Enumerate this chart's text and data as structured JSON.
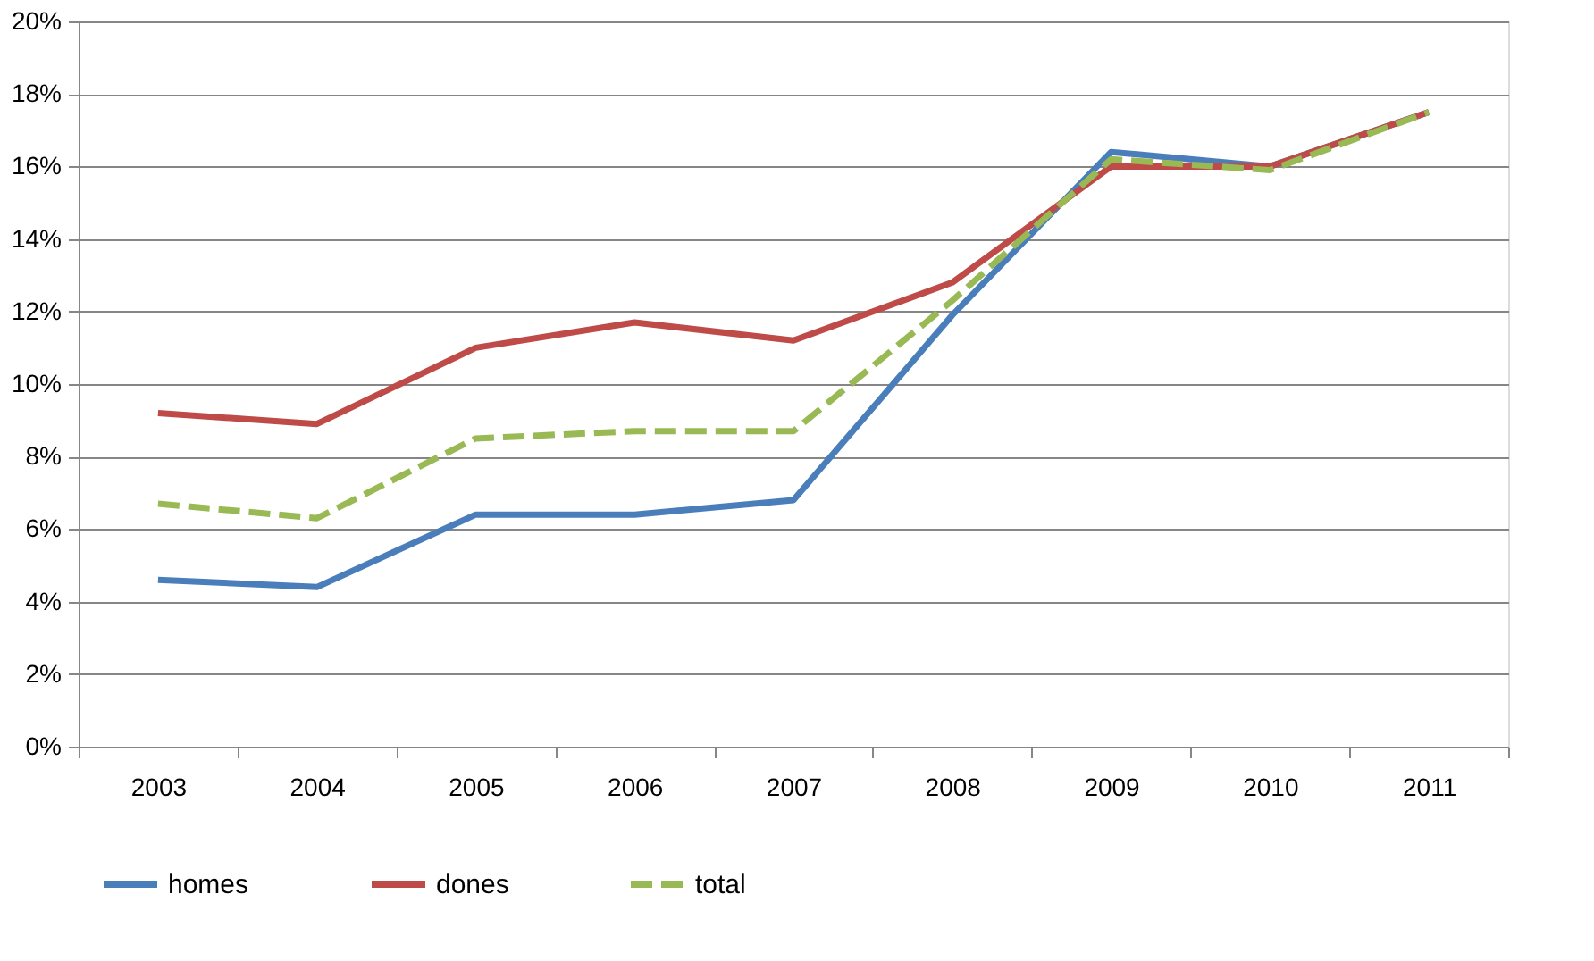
{
  "chart_data": {
    "type": "line",
    "categories": [
      "2003",
      "2004",
      "2005",
      "2006",
      "2007",
      "2008",
      "2009",
      "2010",
      "2011"
    ],
    "series": [
      {
        "name": "homes",
        "color": "#4a7ebb",
        "line_style": "solid",
        "values": [
          4.6,
          4.4,
          6.4,
          6.4,
          6.8,
          11.9,
          16.4,
          16.0,
          17.5
        ]
      },
      {
        "name": "dones",
        "color": "#be4b48",
        "line_style": "solid",
        "values": [
          9.2,
          8.9,
          11.0,
          11.7,
          11.2,
          12.8,
          16.0,
          16.0,
          17.5
        ]
      },
      {
        "name": "total",
        "color": "#98b954",
        "line_style": "dashed",
        "values": [
          6.7,
          6.3,
          8.5,
          8.7,
          8.7,
          12.3,
          16.2,
          15.9,
          17.5
        ]
      }
    ],
    "ylim": [
      0,
      20
    ],
    "yticks": [
      {
        "value": 0,
        "label": "0%"
      },
      {
        "value": 2,
        "label": "2%"
      },
      {
        "value": 4,
        "label": "4%"
      },
      {
        "value": 6,
        "label": "6%"
      },
      {
        "value": 8,
        "label": "8%"
      },
      {
        "value": 10,
        "label": "10%"
      },
      {
        "value": 12,
        "label": "12%"
      },
      {
        "value": 14,
        "label": "14%"
      },
      {
        "value": 16,
        "label": "16%"
      },
      {
        "value": 18,
        "label": "18%"
      },
      {
        "value": 20,
        "label": "20%"
      }
    ],
    "grid": "y",
    "legend": "bottom",
    "marker": "none"
  }
}
